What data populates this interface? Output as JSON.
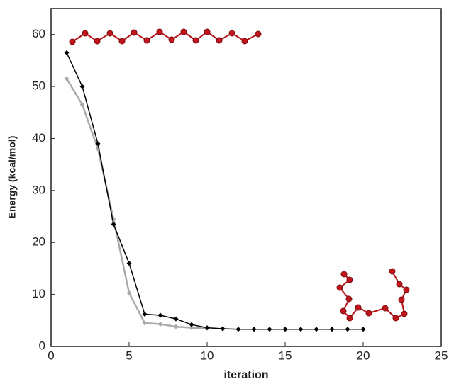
{
  "chart_data": {
    "type": "line",
    "x_label": "iteration",
    "y_label": "Energy (kcal/mol)",
    "x": [
      1,
      2,
      3,
      4,
      5,
      6,
      7,
      8,
      9,
      10,
      11,
      12,
      13,
      14,
      15,
      16,
      17,
      18,
      19,
      20
    ],
    "series": [
      {
        "color": "#aaaaaa",
        "values": [
          51.5,
          46.5,
          38,
          24.5,
          10.3,
          4.5,
          4.3,
          3.8,
          3.6,
          3.5,
          null,
          null,
          null,
          null,
          null,
          null,
          null,
          null,
          null,
          null
        ]
      },
      {
        "color": "#000000",
        "values": [
          56.5,
          50,
          39,
          23.5,
          16,
          6.2,
          6,
          5.3,
          4.2,
          3.6,
          3.4,
          3.3,
          3.3,
          3.3,
          3.3,
          3.3,
          3.3,
          3.3,
          3.3,
          3.3
        ]
      }
    ],
    "xlim": [
      0,
      25
    ],
    "xticks": [
      0,
      5,
      10,
      15,
      20,
      25
    ],
    "ylim": [
      0,
      65
    ],
    "yticks": [
      0,
      10,
      20,
      30,
      40,
      50,
      60
    ]
  }
}
